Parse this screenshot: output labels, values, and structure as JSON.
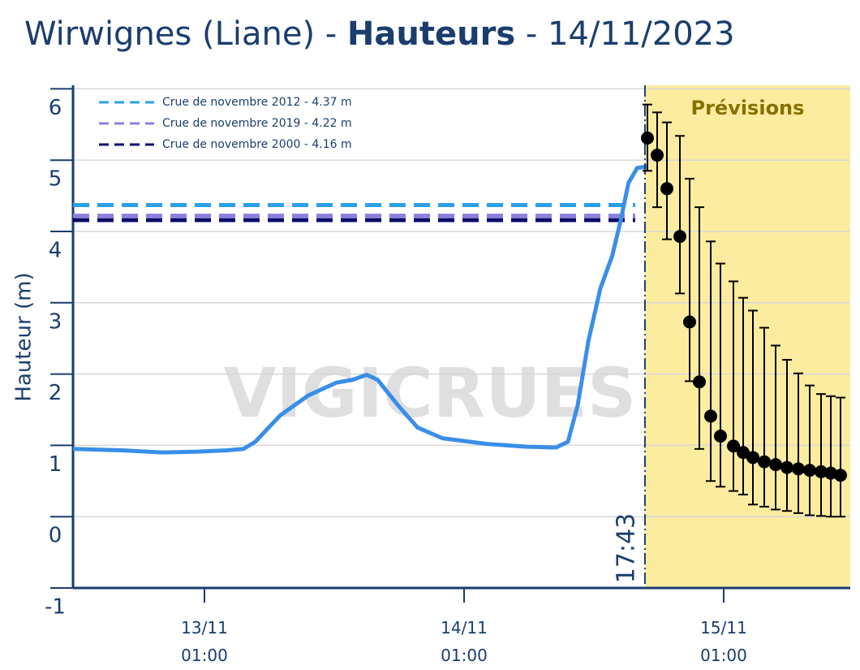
{
  "chart_data": {
    "type": "line",
    "title": {
      "prefix": "Wirwignes (Liane) -",
      "bold": "Hauteurs",
      "suffix": "- 14/11/2023"
    },
    "ylabel": "Hauteur (m)",
    "watermark": "VIGICRUES",
    "forecast_label": "Prévisions",
    "now_label": "17:43",
    "now_x": 41.72,
    "xlim": [
      -11.15,
      60.7
    ],
    "xticks": [
      {
        "value": 1,
        "label": "13/11 01:00"
      },
      {
        "value": 25,
        "label": "14/11 01:00"
      },
      {
        "value": 49,
        "label": "15/11 01:00"
      }
    ],
    "ylim": [
      -1,
      6.05
    ],
    "yticks": [
      -1,
      0,
      1,
      2,
      3,
      4,
      5,
      6
    ],
    "grid": true,
    "observed": {
      "color": "#3a8ee8",
      "x": [
        -11.15,
        -6.65,
        -2.9,
        0.1,
        3.1,
        4.6,
        5.7,
        8.0,
        10.6,
        13.2,
        14.7,
        16.0,
        17.0,
        18.9,
        20.7,
        23.0,
        27.1,
        30.9,
        33.5,
        34.6,
        35.5,
        36.5,
        37.6,
        38.7,
        39.5,
        40.2,
        41.0,
        41.9
      ],
      "values": [
        0.95,
        0.93,
        0.9,
        0.91,
        0.93,
        0.95,
        1.05,
        1.42,
        1.7,
        1.88,
        1.92,
        1.99,
        1.92,
        1.56,
        1.25,
        1.1,
        1.02,
        0.98,
        0.97,
        1.05,
        1.56,
        2.47,
        3.2,
        3.66,
        4.17,
        4.68,
        4.89,
        4.91
      ]
    },
    "forecast": {
      "color": "#000000",
      "x": [
        41.95,
        42.85,
        43.75,
        44.95,
        45.85,
        46.75,
        47.8,
        48.7,
        49.9,
        50.8,
        51.7,
        52.75,
        53.8,
        54.85,
        55.9,
        56.95,
        58.0,
        58.9,
        59.8
      ],
      "values": [
        5.31,
        5.07,
        4.6,
        3.93,
        2.73,
        1.89,
        1.41,
        1.13,
        0.99,
        0.9,
        0.83,
        0.77,
        0.73,
        0.69,
        0.67,
        0.65,
        0.63,
        0.61,
        0.58
      ],
      "lower": [
        4.85,
        4.34,
        3.89,
        3.13,
        1.9,
        0.95,
        0.5,
        0.42,
        0.36,
        0.31,
        0.17,
        0.14,
        0.1,
        0.08,
        0.05,
        0.02,
        0.01,
        0,
        0
      ],
      "upper": [
        5.78,
        5.67,
        5.53,
        5.34,
        4.74,
        4.34,
        3.86,
        3.55,
        3.3,
        3.07,
        2.89,
        2.65,
        2.4,
        2.2,
        2.01,
        1.84,
        1.72,
        1.69,
        1.67
      ]
    },
    "thresholds": [
      {
        "name": "Crue de novembre 2012 - 4.37 m",
        "color": "#2aa0e8",
        "value": 4.37
      },
      {
        "name": "Crue de novembre 2019 - 4.22 m",
        "color": "#8a80e0",
        "value": 4.22
      },
      {
        "name": "Crue de novembre 2000 - 4.16 m",
        "color": "#0a0a6a",
        "value": 4.16
      }
    ]
  }
}
